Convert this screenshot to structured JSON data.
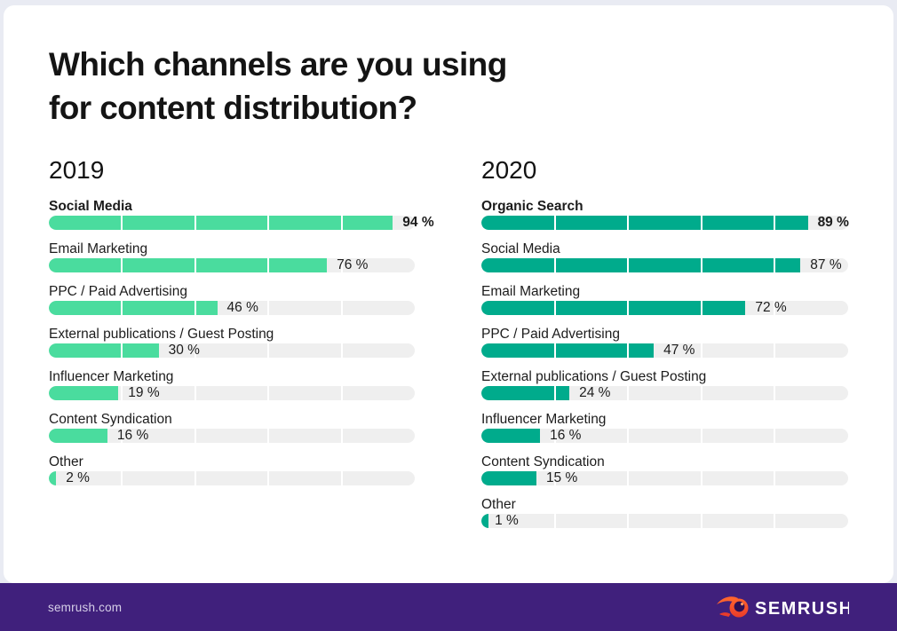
{
  "title": {
    "line1": "Which channels are you using",
    "line2": "for content distribution?"
  },
  "columns": [
    {
      "year": "2019",
      "bar_color": "#4ADC9E",
      "rows": [
        {
          "label": "Social Media",
          "value": 94,
          "display": "94 %",
          "bold": true
        },
        {
          "label": "Email Marketing",
          "value": 76,
          "display": "76 %",
          "bold": false
        },
        {
          "label": "PPC / Paid Advertising",
          "value": 46,
          "display": "46 %",
          "bold": false
        },
        {
          "label": "External publications / Guest Posting",
          "value": 30,
          "display": "30 %",
          "bold": false
        },
        {
          "label": "Influencer Marketing",
          "value": 19,
          "display": "19 %",
          "bold": false
        },
        {
          "label": "Content Syndication",
          "value": 16,
          "display": "16 %",
          "bold": false
        },
        {
          "label": "Other",
          "value": 2,
          "display": "2 %",
          "bold": false
        }
      ]
    },
    {
      "year": "2020",
      "bar_color": "#00AB8C",
      "rows": [
        {
          "label": "Organic Search",
          "value": 89,
          "display": "89 %",
          "bold": true
        },
        {
          "label": "Social Media",
          "value": 87,
          "display": "87 %",
          "bold": false
        },
        {
          "label": "Email Marketing",
          "value": 72,
          "display": "72 %",
          "bold": false
        },
        {
          "label": "PPC / Paid Advertising",
          "value": 47,
          "display": "47 %",
          "bold": false
        },
        {
          "label": "External publications / Guest Posting",
          "value": 24,
          "display": "24 %",
          "bold": false
        },
        {
          "label": "Influencer Marketing",
          "value": 16,
          "display": "16 %",
          "bold": false
        },
        {
          "label": "Content Syndication",
          "value": 15,
          "display": "15 %",
          "bold": false
        },
        {
          "label": "Other",
          "value": 1,
          "display": "1 %",
          "bold": false
        }
      ]
    }
  ],
  "footer": {
    "website": "semrush.com",
    "logo_text": "SEMRUSH"
  },
  "colors": {
    "background": "#E9EBF3",
    "card": "#FFFFFF",
    "track": "#EFEFEF",
    "footer_bg": "#40207C",
    "logo_orange": "#FF642D",
    "logo_red": "#E93C2A",
    "green_2019": "#4ADC9E",
    "teal_2020": "#00AB8C",
    "text": "#1C1C1C"
  },
  "chart_data": [
    {
      "type": "bar",
      "orientation": "horizontal",
      "title": "2019",
      "question": "Which channels are you using for content distribution?",
      "categories": [
        "Social Media",
        "Email Marketing",
        "PPC / Paid Advertising",
        "External publications / Guest Posting",
        "Influencer Marketing",
        "Content Syndication",
        "Other"
      ],
      "values": [
        94,
        76,
        46,
        30,
        19,
        16,
        2
      ],
      "unit": "%",
      "xlim": [
        0,
        100
      ],
      "segment_dividers_every": 20,
      "bar_color": "#4ADC9E",
      "track_color": "#EFEFEF",
      "value_labels": [
        "94 %",
        "76 %",
        "46 %",
        "30 %",
        "19 %",
        "16 %",
        "2 %"
      ]
    },
    {
      "type": "bar",
      "orientation": "horizontal",
      "title": "2020",
      "question": "Which channels are you using for content distribution?",
      "categories": [
        "Organic Search",
        "Social Media",
        "Email Marketing",
        "PPC / Paid Advertising",
        "External publications / Guest Posting",
        "Influencer Marketing",
        "Content Syndication",
        "Other"
      ],
      "values": [
        89,
        87,
        72,
        47,
        24,
        16,
        15,
        1
      ],
      "unit": "%",
      "xlim": [
        0,
        100
      ],
      "segment_dividers_every": 20,
      "bar_color": "#00AB8C",
      "track_color": "#EFEFEF",
      "value_labels": [
        "89 %",
        "87 %",
        "72 %",
        "47 %",
        "24 %",
        "16 %",
        "15 %",
        "1 %"
      ]
    }
  ]
}
